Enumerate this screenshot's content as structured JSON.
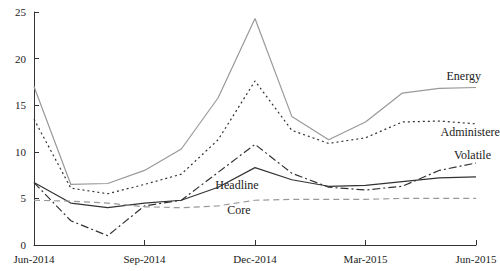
{
  "chart_data": {
    "type": "line",
    "categories": [
      "Jun-2014",
      null,
      null,
      "Sep-2014",
      null,
      null,
      "Dec-2014",
      null,
      null,
      "Mar-2015",
      null,
      null,
      "Jun-2015"
    ],
    "series": [
      {
        "name": "Energy",
        "color": "#999999",
        "line_style": "solid",
        "values": [
          17.0,
          6.5,
          6.6,
          8.0,
          10.3,
          15.8,
          24.3,
          13.8,
          11.3,
          13.2,
          16.3,
          16.8,
          16.9
        ]
      },
      {
        "name": "Administered",
        "color": "#333333",
        "line_style": "dotted",
        "values": [
          13.5,
          6.1,
          5.5,
          6.5,
          7.6,
          11.3,
          17.6,
          12.3,
          10.9,
          11.5,
          13.2,
          13.3,
          13.0
        ]
      },
      {
        "name": "Volatile",
        "color": "#333333",
        "line_style": "dashdot",
        "values": [
          6.7,
          2.6,
          1.0,
          4.2,
          4.8,
          7.8,
          10.8,
          7.7,
          6.2,
          5.9,
          6.3,
          8.0,
          8.8
        ]
      },
      {
        "name": "Headline",
        "color": "#333333",
        "line_style": "solid",
        "values": [
          6.7,
          4.5,
          4.0,
          4.5,
          4.8,
          6.2,
          8.3,
          7.0,
          6.3,
          6.4,
          6.8,
          7.2,
          7.3
        ]
      },
      {
        "name": "Core",
        "color": "#999999",
        "line_style": "dashed",
        "values": [
          4.8,
          4.7,
          4.5,
          4.1,
          4.0,
          4.2,
          4.8,
          4.9,
          4.9,
          4.9,
          5.0,
          5.0,
          5.0
        ]
      }
    ],
    "ylim": [
      0,
      25
    ],
    "yticks": [
      0,
      5,
      10,
      15,
      20,
      25
    ],
    "grid": false
  }
}
